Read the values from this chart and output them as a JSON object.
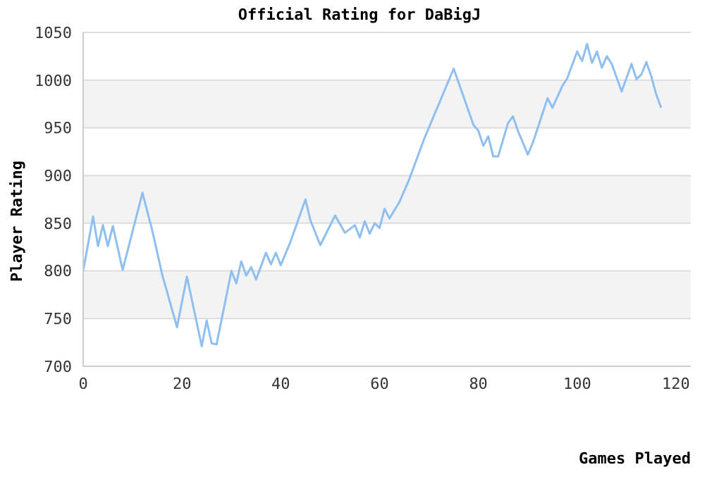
{
  "chart_data": {
    "type": "line",
    "title": "Official Rating for DaBigJ",
    "xlabel": "Games Played",
    "ylabel": "Player Rating",
    "series": [
      {
        "color": "#8fbff0",
        "x": [
          0,
          2,
          3,
          4,
          5,
          6,
          8,
          12,
          14,
          16,
          19,
          21,
          24,
          25,
          26,
          27,
          29,
          30,
          31,
          32,
          33,
          34,
          35,
          37,
          38,
          39,
          40,
          42,
          45,
          46,
          48,
          51,
          53,
          55,
          56,
          57,
          58,
          59,
          60,
          61,
          62,
          64,
          66,
          69,
          75,
          79,
          80,
          81,
          82,
          83,
          84,
          86,
          87,
          88,
          90,
          91,
          94,
          95,
          97,
          98,
          100,
          101,
          102,
          103,
          104,
          105,
          106,
          107,
          109,
          111,
          112,
          113,
          114,
          115,
          116,
          117
        ],
        "values": [
          800,
          857,
          826,
          848,
          826,
          847,
          801,
          882,
          842,
          796,
          741,
          794,
          721,
          748,
          724,
          723,
          774,
          800,
          787,
          810,
          795,
          804,
          791,
          819,
          807,
          819,
          806,
          831,
          875,
          853,
          827,
          858,
          840,
          848,
          835,
          852,
          839,
          850,
          845,
          865,
          855,
          872,
          896,
          938,
          1012,
          953,
          947,
          931,
          941,
          920,
          920,
          955,
          962,
          947,
          922,
          934,
          981,
          971,
          994,
          1002,
          1030,
          1020,
          1038,
          1018,
          1030,
          1013,
          1025,
          1017,
          988,
          1017,
          1001,
          1006,
          1019,
          1004,
          985,
          971
        ]
      }
    ],
    "xlim": [
      0,
      123
    ],
    "xticks": [
      0,
      20,
      40,
      60,
      80,
      100,
      120
    ],
    "ylim": [
      700,
      1050
    ],
    "yticks": [
      700,
      750,
      800,
      850,
      900,
      950,
      1000,
      1050
    ],
    "grid": "y",
    "legend": false,
    "marker": "none",
    "line_style": "solid"
  }
}
